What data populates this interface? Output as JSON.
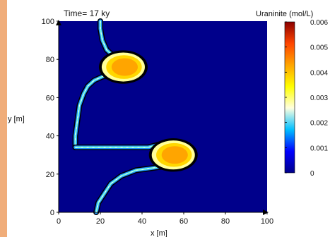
{
  "chart_data": {
    "type": "heatmap",
    "title": "Time= 17 ky",
    "xlabel": "x [m]",
    "ylabel": "y [m]",
    "xlim": [
      0,
      100
    ],
    "ylim": [
      0,
      100
    ],
    "x_ticks": [
      "0",
      "20",
      "40",
      "60",
      "80",
      "100"
    ],
    "y_ticks": [
      "0",
      "20",
      "40",
      "60",
      "80",
      "100"
    ],
    "colorbar": {
      "label": "Uraninite (mol/L)",
      "range": [
        0,
        0.006
      ],
      "ticks": [
        "0",
        "0.001",
        "0.002",
        "0.003",
        "0.004",
        "0.005",
        "0.006"
      ],
      "colors": [
        "#00008b",
        "#0000ff",
        "#00bfff",
        "#ffffe0",
        "#ffff00",
        "#ffa500",
        "#ff4500",
        "#8b0000"
      ]
    },
    "background_color": "#00008b",
    "accent_color": "#f0ad7a",
    "features": [
      {
        "name": "upper front",
        "shape": "crescent",
        "path": [
          [
            20,
            100
          ],
          [
            20,
            96
          ],
          [
            21,
            90
          ],
          [
            23,
            85
          ],
          [
            27,
            81
          ],
          [
            31,
            79
          ],
          [
            33,
            77
          ],
          [
            32,
            74
          ],
          [
            29,
            72
          ],
          [
            25,
            72
          ],
          [
            21,
            71
          ],
          [
            17,
            69
          ],
          [
            14,
            66
          ],
          [
            12,
            62
          ],
          [
            10,
            56
          ],
          [
            9,
            48
          ],
          [
            8,
            40
          ],
          [
            8,
            34
          ]
        ],
        "hotspot": {
          "x": 31,
          "y": 76,
          "peak": 0.0045
        }
      },
      {
        "name": "lower front",
        "shape": "crescent",
        "path": [
          [
            8,
            34
          ],
          [
            14,
            34
          ],
          [
            22,
            34
          ],
          [
            34,
            34
          ],
          [
            43,
            34
          ],
          [
            50,
            36
          ],
          [
            55,
            37
          ],
          [
            59,
            33
          ],
          [
            58,
            28
          ],
          [
            55,
            25
          ],
          [
            50,
            24
          ],
          [
            44,
            23
          ],
          [
            37,
            22
          ],
          [
            30,
            19
          ],
          [
            25,
            15
          ],
          [
            22,
            10
          ],
          [
            19,
            5
          ],
          [
            18,
            0
          ]
        ],
        "hotspot": {
          "x": 55,
          "y": 30,
          "peak": 0.0048
        }
      }
    ]
  }
}
